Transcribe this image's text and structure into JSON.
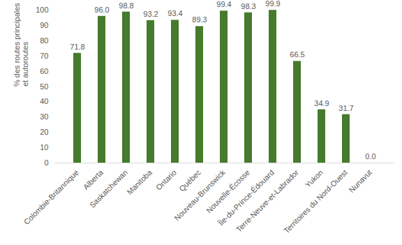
{
  "chart_data": {
    "type": "bar",
    "ylabel": "% des routes principales\net autoroutes",
    "categories": [
      "Colombie-Britannique",
      "Alberta",
      "Saskatchewan",
      "Manitoba",
      "Ontario",
      "Québec",
      "Nouveau-Brunswick",
      "Nouvelle-Écosse",
      "Île-du-Prince-Édouard",
      "Terre-Neuve-et-Labrador",
      "Yukon",
      "Territoires du Nord-Ouest",
      "Nunavut"
    ],
    "values": [
      71.8,
      96.0,
      98.8,
      93.2,
      93.4,
      89.3,
      99.4,
      98.3,
      99.9,
      66.5,
      34.9,
      31.7,
      0.0
    ],
    "value_labels": [
      "71.8",
      "96.0",
      "98.8",
      "93.2",
      "93.4",
      "89.3",
      "99.4",
      "98.3",
      "99.9",
      "66.5",
      "34.9",
      "31.7",
      "0.0"
    ],
    "color": "#467a2c",
    "ylim": [
      0,
      100
    ],
    "yticks": [
      0,
      10,
      20,
      30,
      40,
      50,
      60,
      70,
      80,
      90,
      100
    ],
    "grid": false,
    "data_labels": true
  }
}
